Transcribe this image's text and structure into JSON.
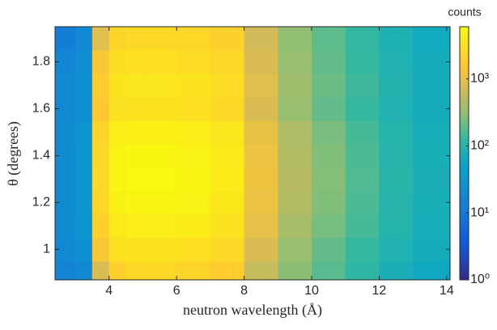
{
  "chart_data": {
    "type": "heatmap",
    "xlabel": "neutron wavelength (Å)",
    "ylabel": "θ (degrees)",
    "colorbar_title": "counts",
    "x": [
      2.75,
      3.25,
      3.75,
      4.25,
      4.75,
      5.5,
      6.5,
      7.5,
      8.5,
      9.5,
      10.5,
      11.5,
      12.5,
      13.5
    ],
    "y": [
      0.9,
      1.0,
      1.1,
      1.2,
      1.3,
      1.4,
      1.5,
      1.6,
      1.7,
      1.8,
      1.9
    ],
    "z": [
      [
        15,
        20,
        800,
        2000,
        2500,
        2500,
        2200,
        1800,
        600,
        300,
        180,
        120,
        80,
        60
      ],
      [
        18,
        25,
        1500,
        3000,
        3300,
        3300,
        3000,
        2500,
        800,
        350,
        200,
        130,
        90,
        70
      ],
      [
        20,
        28,
        2000,
        3800,
        4200,
        4200,
        4000,
        3200,
        1000,
        420,
        240,
        150,
        100,
        75
      ],
      [
        20,
        30,
        2300,
        4500,
        5000,
        5000,
        4600,
        3700,
        1100,
        480,
        270,
        160,
        105,
        78
      ],
      [
        20,
        30,
        2500,
        5000,
        5500,
        5500,
        5000,
        4000,
        1200,
        500,
        280,
        170,
        110,
        80
      ],
      [
        20,
        30,
        2400,
        4800,
        5300,
        5300,
        4800,
        3900,
        1150,
        480,
        270,
        160,
        105,
        78
      ],
      [
        20,
        28,
        2200,
        4200,
        4500,
        4500,
        4200,
        3500,
        1050,
        450,
        250,
        150,
        100,
        75
      ],
      [
        18,
        25,
        1600,
        3000,
        3200,
        3200,
        3000,
        2500,
        800,
        350,
        200,
        130,
        90,
        70
      ],
      [
        18,
        25,
        1800,
        3300,
        3500,
        3500,
        3300,
        2700,
        900,
        380,
        220,
        140,
        95,
        72
      ],
      [
        16,
        22,
        1500,
        2800,
        3000,
        3000,
        2800,
        2400,
        800,
        350,
        200,
        130,
        90,
        70
      ],
      [
        12,
        18,
        900,
        2200,
        2500,
        2500,
        2300,
        2000,
        700,
        320,
        190,
        125,
        85,
        65
      ]
    ],
    "xlim": [
      2.4,
      14.1
    ],
    "xticks": [
      4,
      6,
      8,
      10,
      12,
      14
    ],
    "ylim": [
      0.87,
      1.95
    ],
    "yticks": [
      1,
      1.2,
      1.4,
      1.6,
      1.8
    ],
    "clim": [
      1,
      6000
    ],
    "color_scale": "log",
    "cticks": [
      {
        "value": 1,
        "label": "10⁰"
      },
      {
        "value": 10,
        "label": "10¹"
      },
      {
        "value": 100,
        "label": "10²"
      },
      {
        "value": 1000,
        "label": "10³"
      }
    ]
  }
}
